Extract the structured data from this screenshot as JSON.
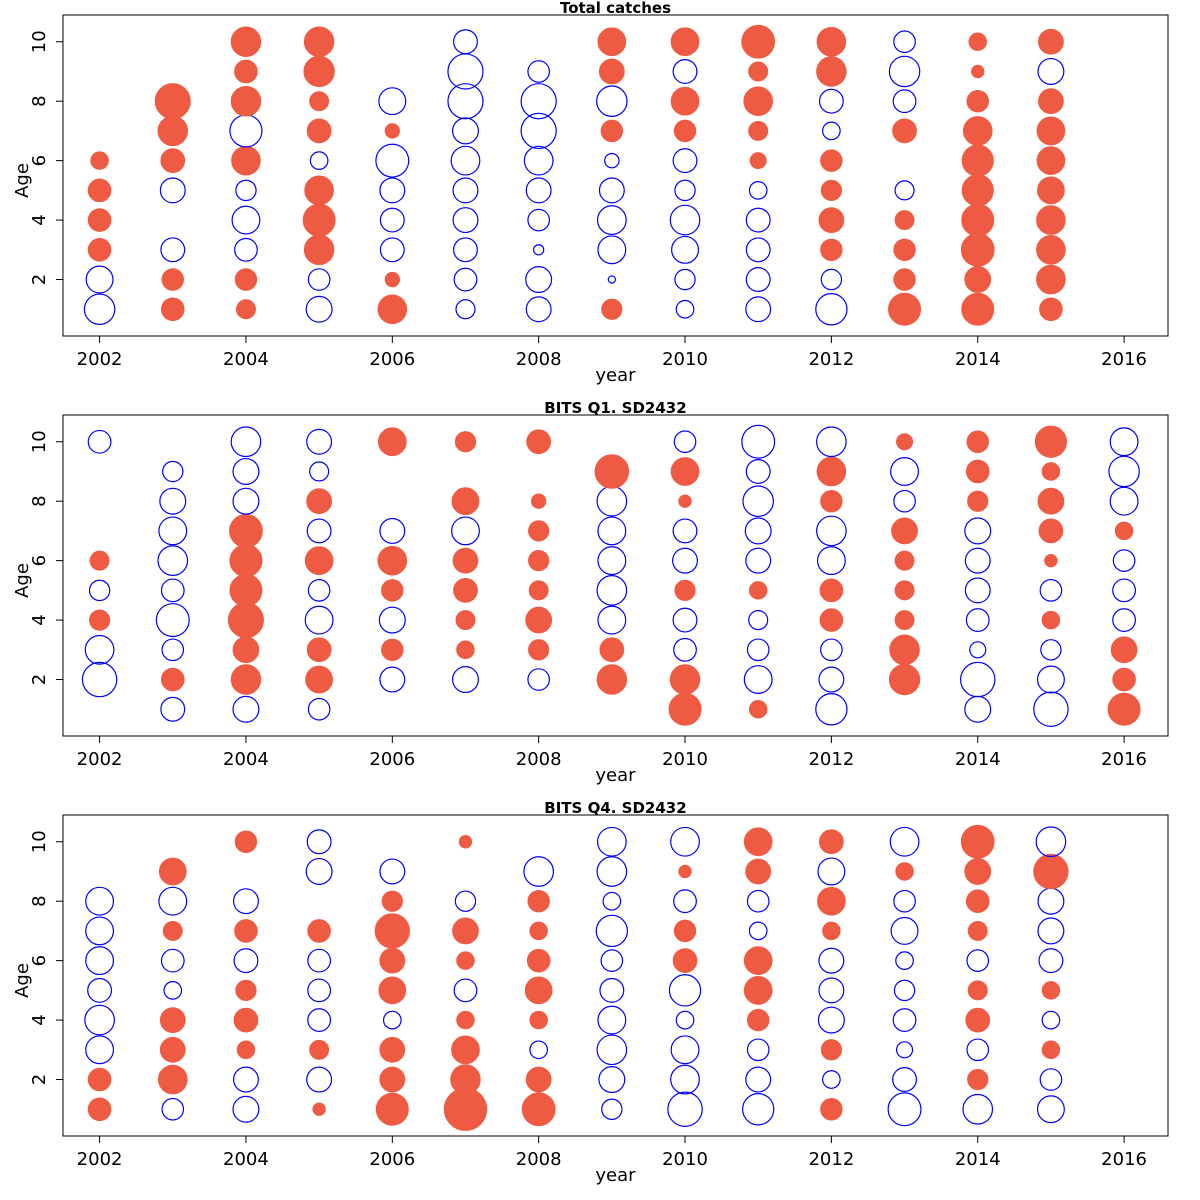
{
  "colors": {
    "positive": "#EE5B42",
    "negative": "#0000FF"
  },
  "chart_data": [
    {
      "type": "scatter",
      "subtype": "bubble",
      "title": "Total catches",
      "xlabel": "year",
      "ylabel": "Age",
      "xlim": [
        2001.5,
        2016.6
      ],
      "ylim": [
        0.1,
        10.9
      ],
      "xticks": [
        "2002",
        "2004",
        "2006",
        "2008",
        "2010",
        "2012",
        "2014",
        "2016"
      ],
      "yticks": [
        "2",
        "4",
        "6",
        "8",
        "10"
      ],
      "ages": [
        1,
        2,
        3,
        4,
        5,
        6,
        7,
        8,
        9,
        10
      ],
      "years": [
        2002,
        2003,
        2004,
        2005,
        2006,
        2007,
        2008,
        2009,
        2010,
        2011,
        2012,
        2013,
        2014,
        2015
      ],
      "residuals": [
        [
          -0.9,
          -0.7,
          0.5,
          0.5,
          0.5,
          0.3,
          null,
          null,
          null,
          null
        ],
        [
          0.5,
          0.45,
          -0.55,
          null,
          -0.6,
          0.55,
          0.85,
          1.2,
          null,
          null
        ],
        [
          0.35,
          0.45,
          -0.5,
          -0.75,
          -0.4,
          0.8,
          -1.0,
          0.85,
          0.5,
          0.85
        ],
        [
          -0.65,
          -0.45,
          0.85,
          1.0,
          0.8,
          -0.3,
          0.55,
          0.35,
          0.9,
          0.85
        ],
        [
          0.8,
          0.2,
          -0.55,
          -0.55,
          -0.6,
          -1.05,
          0.2,
          -0.7,
          null,
          null
        ],
        [
          -0.35,
          -0.5,
          -0.55,
          -0.6,
          -0.6,
          -0.8,
          -0.65,
          -1.2,
          -1.2,
          -0.55
        ],
        [
          -0.6,
          -0.65,
          -0.1,
          -0.45,
          -0.6,
          -0.8,
          -1.2,
          -1.2,
          -0.45,
          null
        ],
        [
          0.4,
          -0.05,
          -0.75,
          -0.8,
          -0.6,
          -0.2,
          0.45,
          -0.9,
          0.6,
          0.75
        ],
        [
          -0.3,
          -0.4,
          -0.7,
          -0.85,
          -0.4,
          -0.55,
          0.45,
          0.75,
          -0.55,
          0.75
        ],
        [
          -0.6,
          -0.55,
          -0.55,
          -0.55,
          -0.3,
          0.25,
          0.35,
          0.8,
          0.35,
          1.05
        ],
        [
          -0.95,
          -0.4,
          0.45,
          0.6,
          0.4,
          0.45,
          -0.3,
          -0.55,
          0.85,
          0.8
        ],
        [
          1.0,
          0.45,
          0.45,
          0.35,
          -0.35,
          null,
          0.55,
          -0.5,
          -0.9,
          -0.45
        ],
        [
          1.0,
          0.65,
          1.05,
          1.0,
          0.95,
          0.95,
          0.8,
          0.45,
          0.15,
          0.3
        ],
        [
          0.5,
          0.8,
          0.8,
          0.8,
          0.7,
          0.75,
          0.75,
          0.6,
          -0.65,
          0.6
        ]
      ]
    },
    {
      "type": "scatter",
      "subtype": "bubble",
      "title": "BITS Q1. SD2432",
      "xlabel": "year",
      "ylabel": "Age",
      "xlim": [
        2001.5,
        2016.6
      ],
      "ylim": [
        0.1,
        10.9
      ],
      "xticks": [
        "2002",
        "2004",
        "2006",
        "2008",
        "2010",
        "2012",
        "2014",
        "2016"
      ],
      "yticks": [
        "2",
        "4",
        "6",
        "8",
        "10"
      ],
      "ages": [
        1,
        2,
        3,
        4,
        5,
        6,
        7,
        8,
        9,
        10
      ],
      "years": [
        2002,
        2003,
        2004,
        2005,
        2006,
        2007,
        2008,
        2009,
        2010,
        2011,
        2012,
        2013,
        2014,
        2015,
        2016
      ],
      "residuals": [
        [
          null,
          -1.15,
          -0.8,
          0.4,
          -0.4,
          0.35,
          null,
          null,
          null,
          -0.5
        ],
        [
          -0.55,
          0.5,
          -0.45,
          -1.05,
          -0.5,
          -0.85,
          -0.75,
          -0.65,
          -0.4,
          null
        ],
        [
          -0.65,
          0.85,
          0.65,
          1.2,
          1.0,
          1.0,
          1.05,
          -0.65,
          -0.65,
          -0.85
        ],
        [
          -0.45,
          0.7,
          0.55,
          -0.75,
          -0.45,
          0.75,
          -0.55,
          0.6,
          -0.35,
          -0.6
        ],
        [
          null,
          -0.6,
          0.45,
          -0.65,
          0.45,
          0.8,
          -0.6,
          null,
          null,
          0.75
        ],
        [
          null,
          -0.65,
          0.3,
          0.35,
          0.55,
          0.6,
          -0.75,
          0.7,
          null,
          0.4
        ],
        [
          null,
          -0.45,
          0.4,
          0.65,
          0.35,
          0.4,
          0.4,
          0.2,
          null,
          0.55
        ],
        [
          null,
          0.85,
          0.55,
          -0.75,
          -0.85,
          -0.75,
          -0.75,
          -0.85,
          1.1,
          null
        ],
        [
          1.0,
          0.85,
          -0.5,
          -0.55,
          0.4,
          -0.6,
          -0.55,
          0.15,
          0.75,
          -0.45
        ],
        [
          0.3,
          -0.75,
          -0.45,
          -0.35,
          0.3,
          -0.6,
          -0.65,
          -0.9,
          -0.55,
          -1.05
        ],
        [
          -0.95,
          -0.6,
          -0.45,
          0.5,
          0.5,
          -0.75,
          -0.85,
          0.45,
          0.8,
          -0.85
        ],
        [
          null,
          0.9,
          0.85,
          0.35,
          0.35,
          0.35,
          0.65,
          -0.45,
          -0.75,
          0.25
        ],
        [
          -0.65,
          -1.15,
          -0.25,
          -0.5,
          -0.6,
          -0.6,
          -0.65,
          0.4,
          0.5,
          0.45
        ],
        [
          -1.15,
          -0.7,
          -0.4,
          0.3,
          -0.45,
          0.15,
          0.55,
          0.65,
          0.3,
          0.95
        ],
        [
          1.0,
          0.5,
          0.65,
          -0.5,
          -0.5,
          -0.45,
          0.3,
          -0.75,
          -0.9,
          -0.75
        ]
      ]
    },
    {
      "type": "scatter",
      "subtype": "bubble",
      "title": "BITS Q4. SD2432",
      "xlabel": "year",
      "ylabel": "Age",
      "xlim": [
        2001.5,
        2016.6
      ],
      "ylim": [
        0.1,
        10.9
      ],
      "xticks": [
        "2002",
        "2004",
        "2006",
        "2008",
        "2010",
        "2012",
        "2014",
        "2016"
      ],
      "yticks": [
        "2",
        "4",
        "6",
        "8",
        "10"
      ],
      "ages": [
        1,
        2,
        3,
        4,
        5,
        6,
        7,
        8,
        9,
        10
      ],
      "years": [
        2002,
        2003,
        2004,
        2005,
        2006,
        2007,
        2008,
        2009,
        2010,
        2011,
        2012,
        2013,
        2014,
        2015
      ],
      "residuals": [
        [
          0.5,
          0.5,
          -0.75,
          -0.85,
          -0.55,
          -0.75,
          -0.75,
          -0.75,
          null,
          null
        ],
        [
          -0.45,
          0.8,
          0.6,
          0.6,
          -0.3,
          -0.5,
          0.35,
          -0.75,
          0.7,
          null
        ],
        [
          -0.65,
          -0.6,
          0.3,
          0.55,
          0.4,
          -0.55,
          0.5,
          -0.6,
          null,
          0.45
        ],
        [
          0.15,
          -0.6,
          0.35,
          -0.5,
          -0.5,
          -0.5,
          0.5,
          null,
          -0.65,
          -0.55
        ],
        [
          1.0,
          0.6,
          0.6,
          -0.3,
          0.7,
          0.6,
          1.15,
          0.4,
          -0.6,
          null
        ],
        [
          1.75,
          0.85,
          0.75,
          0.3,
          -0.5,
          0.3,
          0.65,
          -0.4,
          null,
          0.15
        ],
        [
          1.05,
          0.6,
          -0.3,
          0.3,
          0.7,
          0.5,
          0.3,
          0.45,
          -0.85,
          null
        ],
        [
          -0.4,
          -0.65,
          -0.85,
          -0.75,
          -0.55,
          -0.45,
          -0.95,
          -0.3,
          -0.85,
          -0.8
        ],
        [
          -1.15,
          -0.8,
          -0.75,
          -0.3,
          -0.95,
          0.55,
          0.45,
          -0.5,
          0.15,
          -0.8
        ],
        [
          -0.95,
          -0.6,
          -0.45,
          0.45,
          0.75,
          0.75,
          -0.3,
          -0.45,
          0.6,
          0.75
        ],
        [
          0.45,
          -0.3,
          0.4,
          -0.65,
          -0.6,
          -0.6,
          0.3,
          0.75,
          -0.7,
          0.55
        ],
        [
          -1.05,
          -0.55,
          -0.25,
          -0.5,
          -0.4,
          -0.3,
          -0.7,
          -0.45,
          0.3,
          -0.8
        ],
        [
          -0.85,
          0.4,
          -0.45,
          0.55,
          0.35,
          -0.45,
          0.35,
          0.5,
          0.65,
          1.05
        ],
        [
          -0.7,
          -0.45,
          0.3,
          -0.3,
          0.3,
          -0.55,
          -0.65,
          -0.65,
          1.15,
          -0.85
        ]
      ]
    }
  ]
}
